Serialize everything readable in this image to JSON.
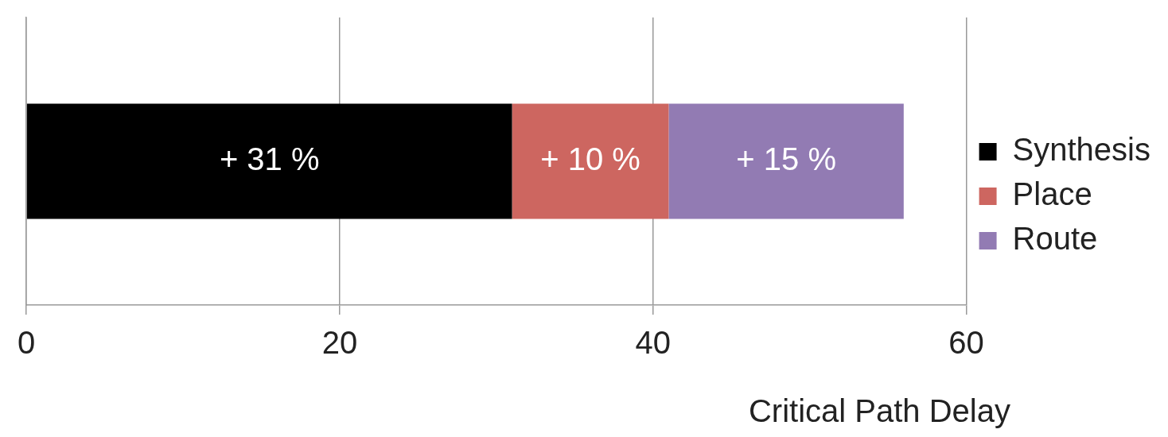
{
  "chart_data": {
    "type": "bar",
    "orientation": "horizontal",
    "stacked": true,
    "categories": [
      null
    ],
    "series": [
      {
        "name": "Synthesis",
        "color": "#000000",
        "values": [
          31
        ],
        "value_labels": [
          "+ 31 %"
        ]
      },
      {
        "name": "Place",
        "color": "#cd6660",
        "values": [
          10
        ],
        "value_labels": [
          "+ 10 %"
        ]
      },
      {
        "name": "Route",
        "color": "#927bb3",
        "values": [
          15
        ],
        "value_labels": [
          "+ 15 %"
        ]
      }
    ],
    "xlabel": "Critical Path Delay",
    "xlim": [
      0,
      60
    ],
    "xticks": [
      0,
      20,
      40,
      60
    ],
    "grid": "x",
    "legend": "right"
  }
}
